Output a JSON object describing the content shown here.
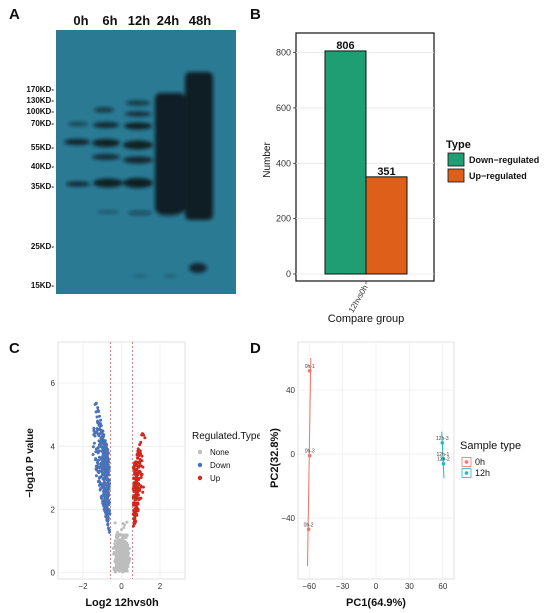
{
  "panel_letters": [
    "A",
    "B",
    "C",
    "D"
  ],
  "colors": {
    "blot_bg": "#2a7a94",
    "band": "#0d1a20",
    "down": "#1f9e74",
    "up": "#dd5f1a",
    "none": "#bdbdbd",
    "down_dot": "#4a72b8",
    "up_dot": "#d0281d",
    "pc_0h": "#f0756b",
    "pc_12h": "#1cbcc4"
  },
  "chart_data": [
    {
      "type": "western-blot",
      "lanes": [
        "0h",
        "6h",
        "12h",
        "24h",
        "48h"
      ],
      "markers": [
        "170KD-",
        "130KD-",
        "100KD-",
        "70KD-",
        "55KD-",
        "40KD-",
        "35KD-",
        "25KD-",
        "15KD-"
      ]
    },
    {
      "type": "bar",
      "categories": [
        "12hvs0h"
      ],
      "series": [
        {
          "name": "Down−regulated",
          "values": [
            806
          ]
        },
        {
          "name": "Up−regulated",
          "values": [
            351
          ]
        }
      ],
      "value_labels": [
        "806",
        "351"
      ],
      "yticks": [
        "0",
        "200",
        "400",
        "600",
        "800"
      ],
      "ylim": [
        0,
        860
      ],
      "xlabel": "Compare group",
      "ylabel": "Number",
      "legend_title": "Type",
      "legend_position": "right"
    },
    {
      "type": "scatter",
      "xlabel": "Log2 12hvs0h",
      "ylabel": "−log10 P value",
      "xticks": [
        "−2",
        "0",
        "2"
      ],
      "yticks": [
        "0",
        "2",
        "4",
        "6"
      ],
      "xlim": [
        -3.3,
        3.3
      ],
      "ylim": [
        -0.2,
        7.3
      ],
      "legend_title": "Regulated.Type",
      "legend": [
        "None",
        "Down",
        "Up"
      ],
      "legend_position": "right"
    },
    {
      "type": "scatter",
      "xlabel": "PC1(64.9%)",
      "ylabel": "PC2(32.8%)",
      "xticks": [
        "−60",
        "−30",
        "0",
        "30",
        "60"
      ],
      "yticks": [
        "−40",
        "0",
        "40"
      ],
      "xlim": [
        -70,
        70
      ],
      "ylim": [
        -78,
        70
      ],
      "legend_title": "Sample type",
      "legend": [
        "0h",
        "12h"
      ],
      "legend_position": "right",
      "points": [
        {
          "label": "0h-1",
          "group": "0h",
          "x": -59.5,
          "y": 52
        },
        {
          "label": "0h-3",
          "group": "0h",
          "x": -59.5,
          "y": -1
        },
        {
          "label": "0h-2",
          "group": "0h",
          "x": -60.5,
          "y": -47
        },
        {
          "label": "12h-3",
          "group": "12h",
          "x": 59.5,
          "y": 7
        },
        {
          "label": "12h-1",
          "group": "12h",
          "x": 60,
          "y": -3
        },
        {
          "label": "12h-2",
          "group": "12h",
          "x": 60.5,
          "y": -6
        }
      ]
    }
  ]
}
